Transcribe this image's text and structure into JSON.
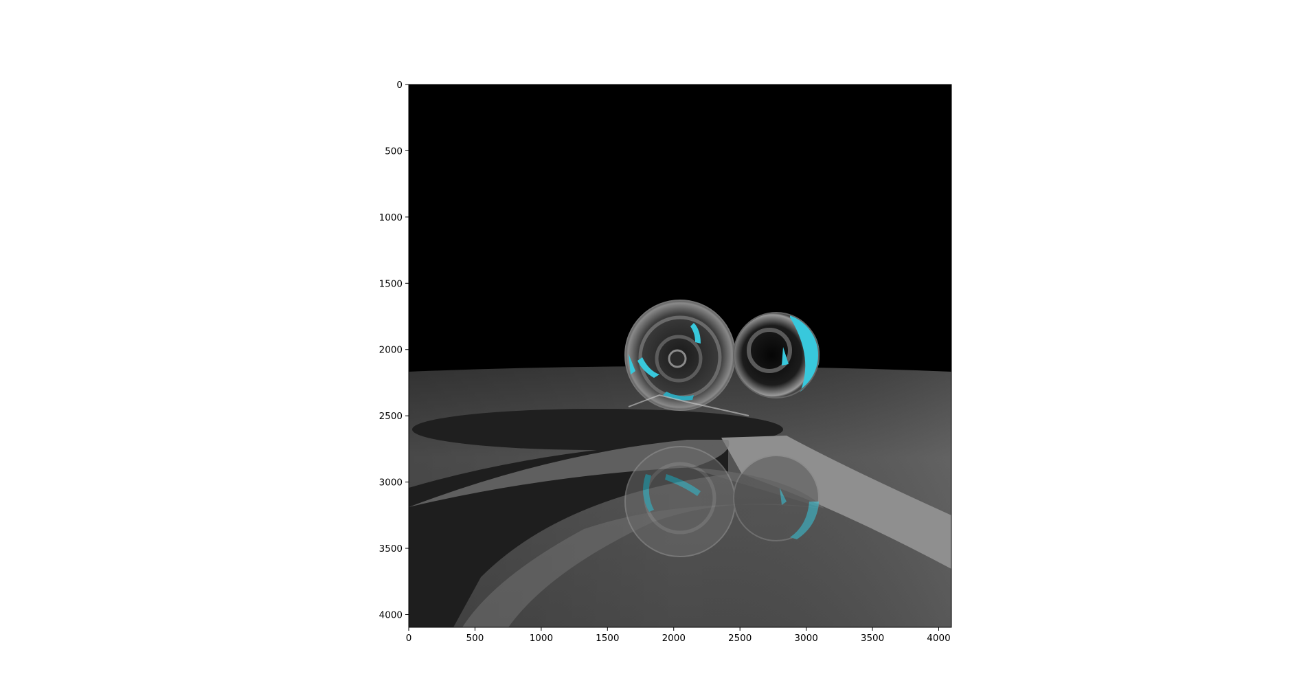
{
  "figure": {
    "kind": "rendered image shown with axes",
    "scene": {
      "background_top": "#000000",
      "floor_color": "#5a5a5a",
      "highlight_color": "#38c8dc",
      "objects": [
        "glass sphere (large)",
        "glass sphere (small)",
        "reflective floor",
        "shadows"
      ]
    }
  },
  "chart_data": {
    "type": "image",
    "title": "",
    "xlabel": "",
    "ylabel": "",
    "xlim": [
      0,
      4096
    ],
    "ylim": [
      4096,
      0
    ],
    "grid": false,
    "x_ticks": [
      "0",
      "500",
      "1000",
      "1500",
      "2000",
      "2500",
      "3000",
      "3500",
      "4000"
    ],
    "y_ticks": [
      "0",
      "500",
      "1000",
      "1500",
      "2000",
      "2500",
      "3000",
      "3500",
      "4000"
    ]
  }
}
